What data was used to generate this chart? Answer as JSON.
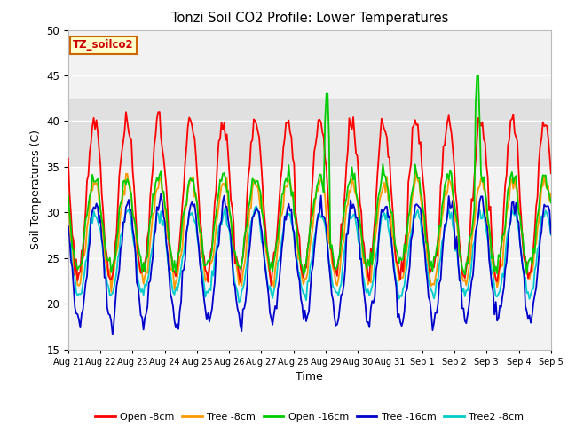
{
  "title": "Tonzi Soil CO2 Profile: Lower Temperatures",
  "xlabel": "Time",
  "ylabel": "Soil Temperatures (C)",
  "ylim": [
    15,
    50
  ],
  "yticks": [
    15,
    20,
    25,
    30,
    35,
    40,
    45,
    50
  ],
  "background_color": "#ffffff",
  "plot_bg_color": "#f2f2f2",
  "grid_color": "#ffffff",
  "label_box_text": "TZ_soilco2",
  "label_box_bg": "#ffffcc",
  "label_box_edge": "#cc6600",
  "label_box_text_color": "#cc0000",
  "series_colors": {
    "Open -8cm": "#ff0000",
    "Tree -8cm": "#ff9900",
    "Open -16cm": "#00cc00",
    "Tree -16cm": "#0000cc",
    "Tree2 -8cm": "#00cccc"
  },
  "date_labels": [
    "Aug 21",
    "Aug 22",
    "Aug 23",
    "Aug 24",
    "Aug 25",
    "Aug 26",
    "Aug 27",
    "Aug 28",
    "Aug 29",
    "Aug 30",
    "Aug 31",
    "Sep 1",
    "Sep 2",
    "Sep 3",
    "Sep 4",
    "Sep 5"
  ],
  "shaded_band_lo": 35.0,
  "shaded_band_hi": 42.5,
  "shaded_band_color": "#e0e0e0"
}
